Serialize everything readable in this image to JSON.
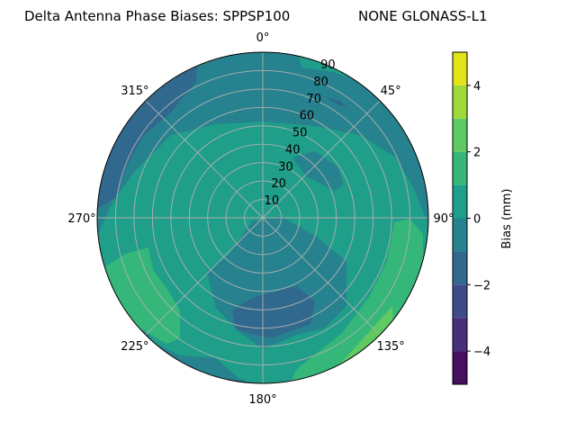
{
  "chart_data": {
    "type": "contour",
    "projection": "polar",
    "title_left": "Delta Antenna Phase Biases: SPPSP100",
    "title_right": "NONE GLONASS-L1",
    "theta_zero": "N",
    "theta_direction": "clockwise",
    "theta_ticks": [
      {
        "value": 0,
        "label": "0°"
      },
      {
        "value": 45,
        "label": "45°"
      },
      {
        "value": 90,
        "label": "90°"
      },
      {
        "value": 135,
        "label": "135°"
      },
      {
        "value": 180,
        "label": "180°"
      },
      {
        "value": 225,
        "label": "225°"
      },
      {
        "value": 270,
        "label": "270°"
      },
      {
        "value": 315,
        "label": "315°"
      }
    ],
    "r_ticks": [
      "10",
      "20",
      "30",
      "40",
      "50",
      "60",
      "70",
      "80",
      "90"
    ],
    "rlim": [
      0,
      90
    ],
    "grid": true,
    "colorbar": {
      "label": "Bias (mm)",
      "levels": [
        -5,
        -4,
        -3,
        -2,
        -1,
        0,
        1,
        2,
        3,
        4,
        5
      ],
      "colors": [
        "#46105f",
        "#482f7b",
        "#3f4a89",
        "#31688e",
        "#26828e",
        "#1f9e89",
        "#35b779",
        "#5fc962",
        "#9fda3a",
        "#e2e418"
      ],
      "ticks": [
        {
          "value": 4,
          "label": "4"
        },
        {
          "value": 2,
          "label": "2"
        },
        {
          "value": 0,
          "label": "0"
        },
        {
          "value": -2,
          "label": "−2"
        },
        {
          "value": -4,
          "label": "−4"
        }
      ],
      "range": [
        -5,
        5
      ]
    },
    "regions_description_levels": {
      "background": "-1..0",
      "central": "0..1",
      "south_low": "-2..-1",
      "southeast_high": "1..2 and 2..3",
      "southwest_high": "1..2",
      "northwest_low": "-2..-1"
    }
  }
}
